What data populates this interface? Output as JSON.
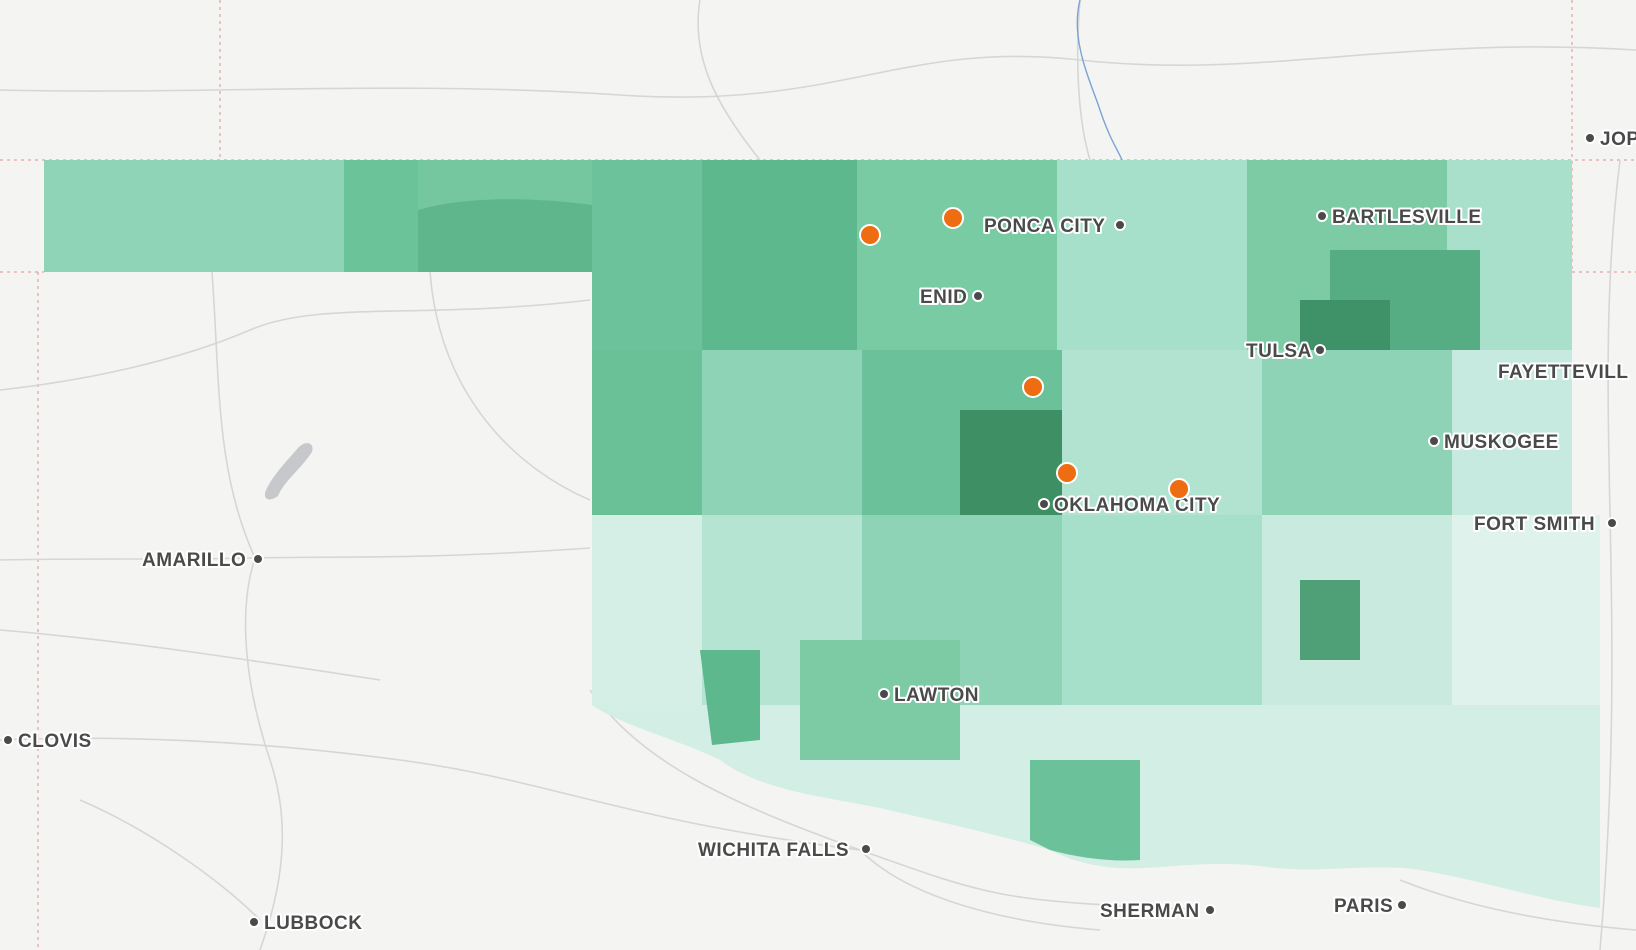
{
  "map": {
    "colors": {
      "background": "#f4f4f3",
      "road": "#d8d8d8",
      "border": "#e3a1a1",
      "river": "#7aa4d6",
      "choropleth": [
        "#e6f5f1",
        "#c8eadf",
        "#a3dcc5",
        "#84cfad",
        "#6ac196",
        "#54ac7e",
        "#3e8f63"
      ],
      "marker": "#ee6c12"
    },
    "cities": [
      {
        "id": "ponca-city",
        "name": "PONCA CITY"
      },
      {
        "id": "bartlesville",
        "name": "BARTLESVILLE"
      },
      {
        "id": "enid",
        "name": "ENID"
      },
      {
        "id": "tulsa",
        "name": "TULSA"
      },
      {
        "id": "fayetteville",
        "name": "FAYETTEVILL"
      },
      {
        "id": "muskogee",
        "name": "MUSKOGEE"
      },
      {
        "id": "oklahoma-city",
        "name": "OKLAHOMA CITY"
      },
      {
        "id": "fort-smith",
        "name": "FORT SMITH"
      },
      {
        "id": "amarillo",
        "name": "AMARILLO"
      },
      {
        "id": "lawton",
        "name": "LAWTON"
      },
      {
        "id": "clovis",
        "name": "CLOVIS"
      },
      {
        "id": "wichita-falls",
        "name": "WICHITA FALLS"
      },
      {
        "id": "sherman",
        "name": "SHERMAN"
      },
      {
        "id": "paris",
        "name": "PARIS"
      },
      {
        "id": "lubbock",
        "name": "LUBBOCK"
      },
      {
        "id": "joplin",
        "name": "JOP"
      }
    ],
    "markers": [
      "marker-1",
      "marker-2",
      "marker-3",
      "marker-4",
      "marker-5"
    ]
  }
}
